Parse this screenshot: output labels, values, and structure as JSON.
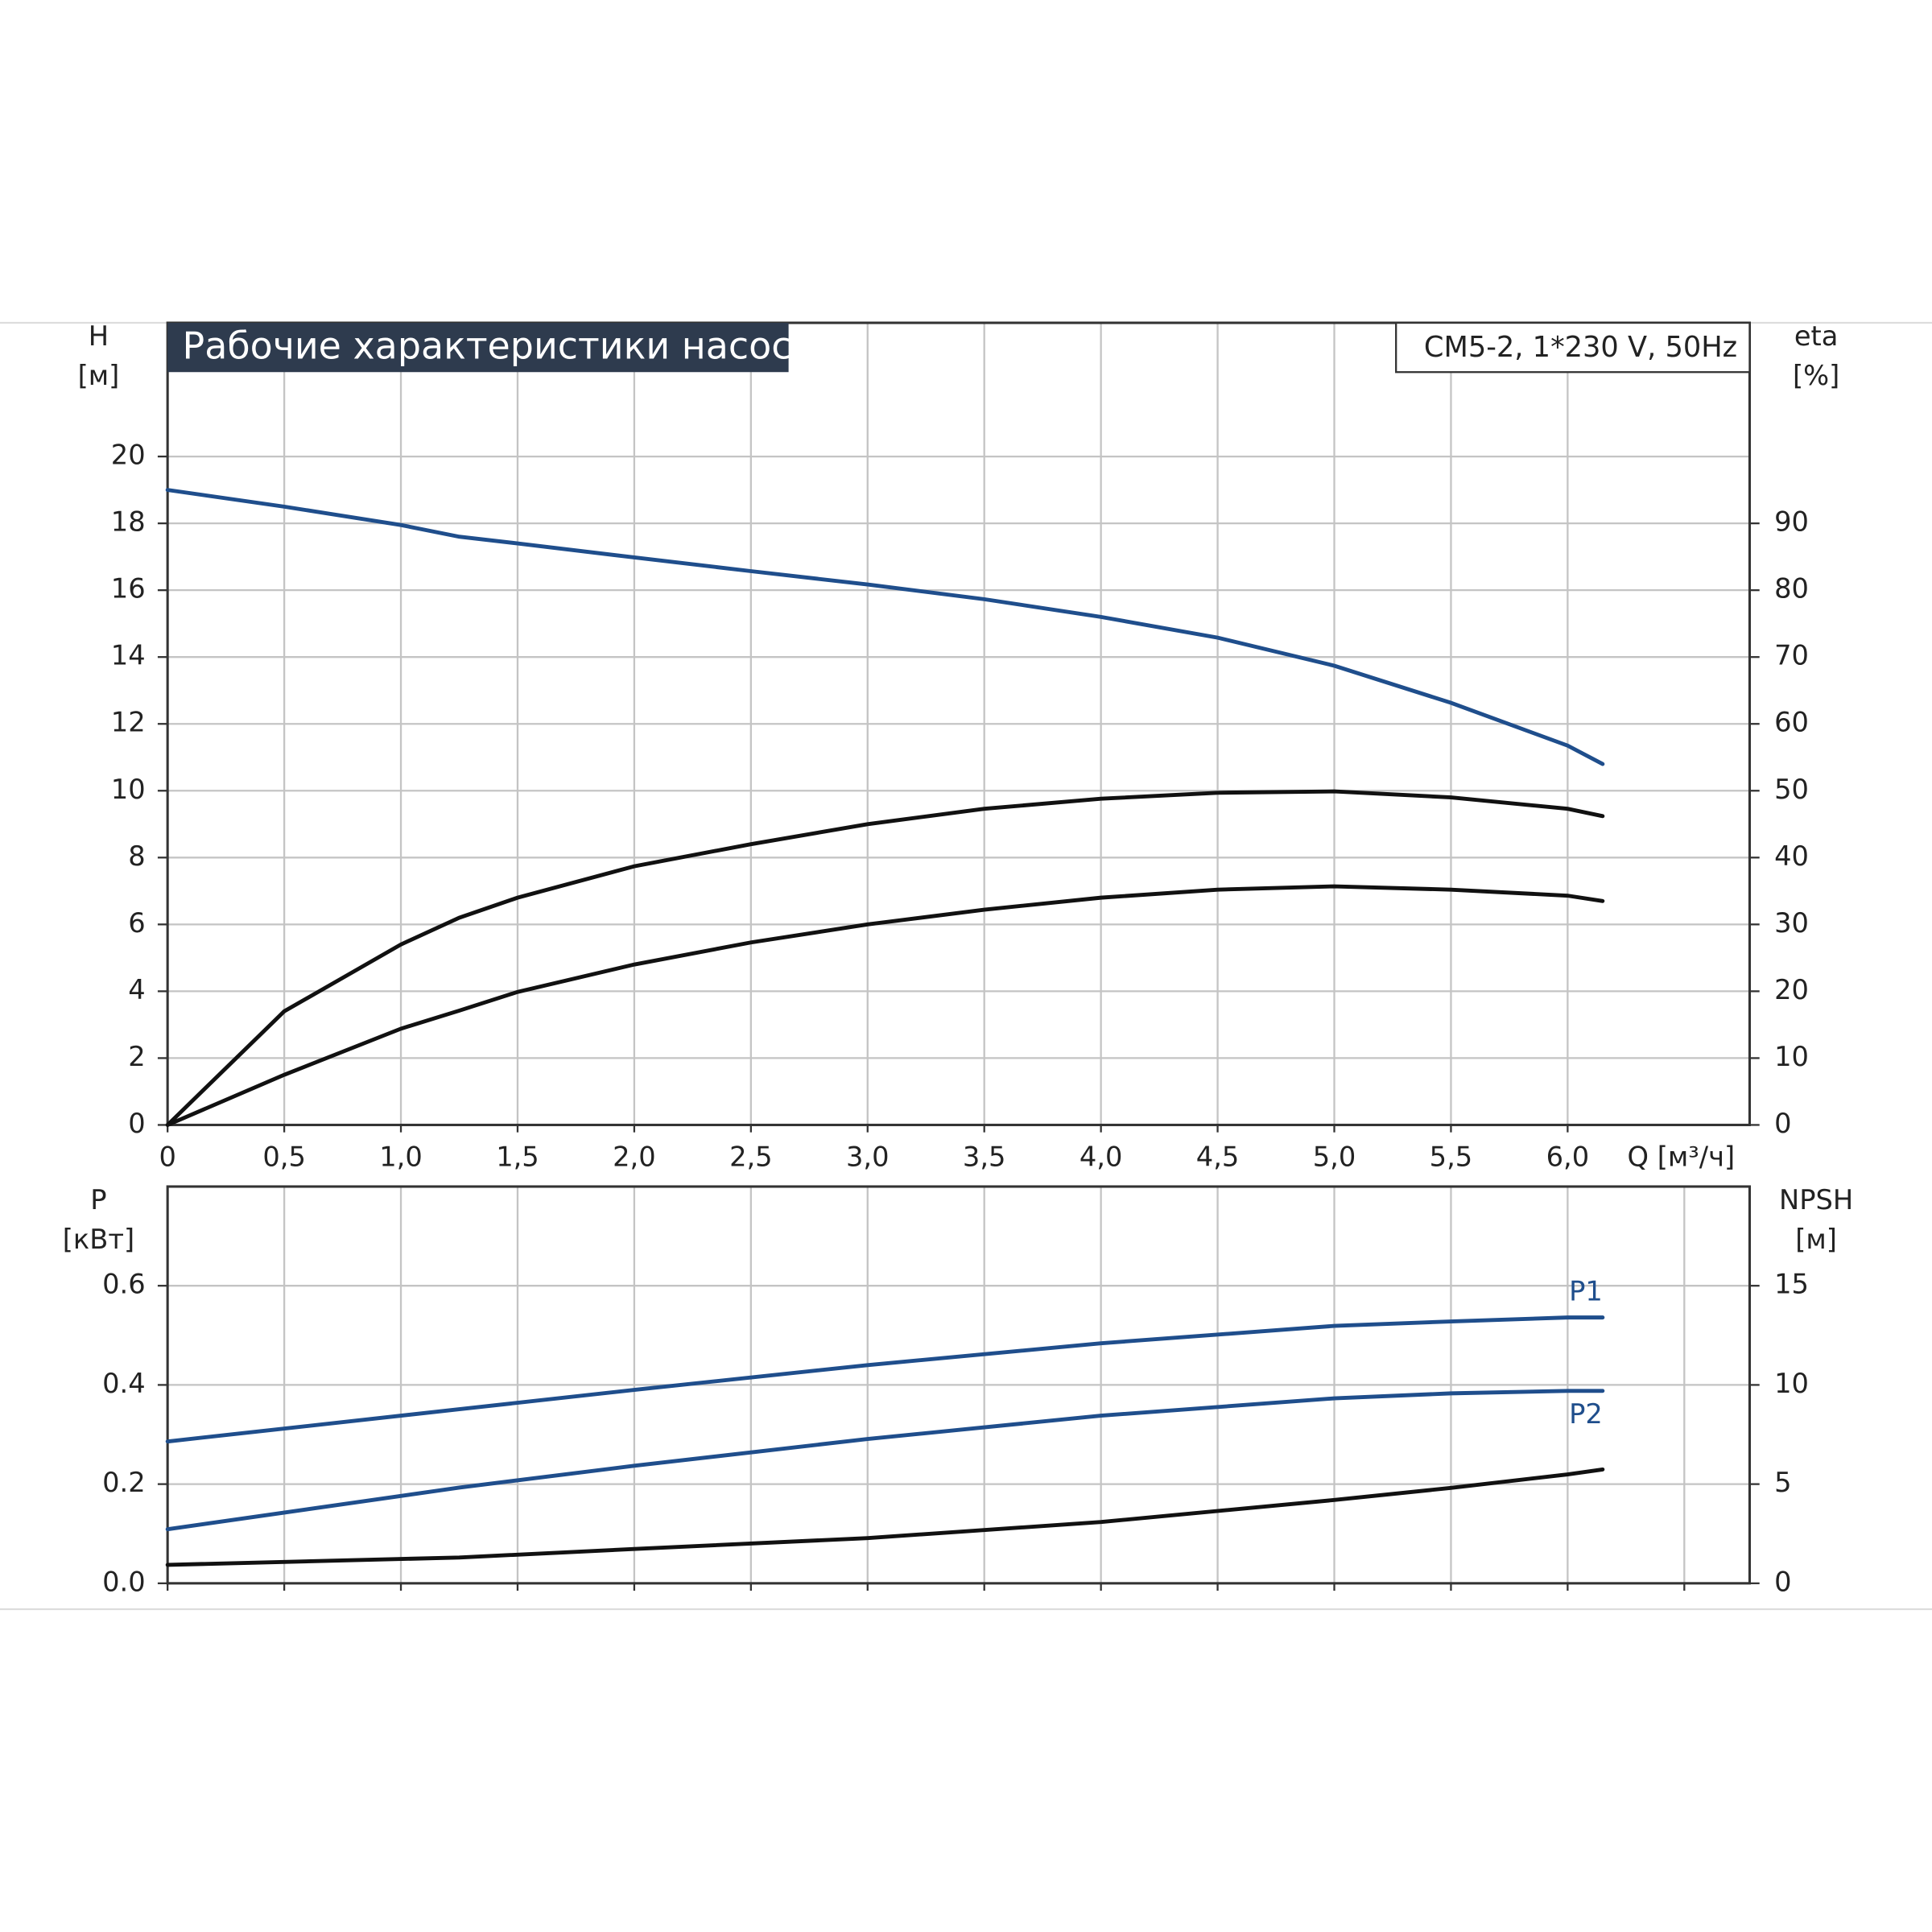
{
  "chart_data": [
    {
      "type": "line",
      "title": "Рабочие характеристики насоса",
      "annotation": "CM5-2, 1*230 V, 50Hz",
      "xlabel": "Q [м³/ч]",
      "ylabel": [
        "H",
        "[м]"
      ],
      "y2label": [
        "eta",
        "[%]"
      ],
      "x": [
        0,
        0.5,
        1.0,
        1.25,
        1.5,
        2.0,
        2.5,
        3.0,
        3.5,
        4.0,
        4.5,
        5.0,
        5.5,
        6.0,
        6.15
      ],
      "xlim": [
        0,
        6.78
      ],
      "xticks": [
        0,
        {
          "value": 0.5,
          "label": "0,5"
        },
        {
          "value": 1.0,
          "label": "1,0"
        },
        {
          "value": 1.5,
          "label": "1,5"
        },
        {
          "value": 2.0,
          "label": "2,0"
        },
        {
          "value": 2.5,
          "label": "2,5"
        },
        {
          "value": 3.0,
          "label": "3,0"
        },
        {
          "value": 3.5,
          "label": "3,5"
        },
        {
          "value": 4.0,
          "label": "4,0"
        },
        {
          "value": 4.5,
          "label": "4,5"
        },
        {
          "value": 5.0,
          "label": "5,0"
        },
        {
          "value": 5.5,
          "label": "5,5"
        },
        {
          "value": 6.0,
          "label": "6,0"
        }
      ],
      "ylim": [
        0,
        24
      ],
      "yticks": [
        0,
        2,
        4,
        6,
        8,
        10,
        12,
        14,
        16,
        18,
        20
      ],
      "y2lim": [
        0,
        120
      ],
      "y2ticks": [
        0,
        10,
        20,
        30,
        40,
        50,
        60,
        70,
        80,
        90
      ],
      "grid": true,
      "series": [
        {
          "color": "#1f4e8c",
          "values": [
            19.0,
            18.5,
            17.95,
            17.6,
            17.4,
            16.98,
            16.57,
            16.17,
            15.73,
            15.2,
            14.58,
            13.74,
            12.63,
            11.35,
            10.8
          ]
        },
        {
          "color": "#111111",
          "axis": "y2",
          "values": [
            0,
            17,
            27,
            31,
            34,
            38.7,
            42,
            45,
            47.3,
            48.8,
            49.7,
            49.9,
            49,
            47.3,
            46.2
          ]
        },
        {
          "color": "#111111",
          "axis": "y2",
          "values": [
            0,
            7.5,
            14.4,
            17.1,
            19.9,
            24,
            27.3,
            30,
            32.2,
            34,
            35.2,
            35.7,
            35.2,
            34.3,
            33.5
          ]
        }
      ]
    },
    {
      "type": "line",
      "ylabel": [
        "P",
        "[кВт]"
      ],
      "y2label": [
        "NPSH",
        "[м]"
      ],
      "x": [
        0,
        1.25,
        2.0,
        3.0,
        4.0,
        5.0,
        5.5,
        6.0,
        6.15
      ],
      "xlim": [
        0,
        6.78
      ],
      "xticks": [
        0,
        0.5,
        1.0,
        1.5,
        2.0,
        2.5,
        3.0,
        3.5,
        4.0,
        4.5,
        5.0,
        5.5,
        6.0,
        6.5
      ],
      "ylim": [
        0,
        0.8
      ],
      "yticks": [
        {
          "value": 0,
          "label": "0.0"
        },
        0.2,
        0.4,
        0.6
      ],
      "y2lim": [
        0,
        20
      ],
      "y2ticks": [
        0,
        5,
        10,
        15
      ],
      "grid": true,
      "series": [
        {
          "name": "P1",
          "color": "#1f4e8c",
          "values": [
            0.286,
            0.351,
            0.39,
            0.44,
            0.484,
            0.519,
            0.528,
            0.536,
            0.536
          ]
        },
        {
          "name": "P2",
          "color": "#1f4e8c",
          "values": [
            0.109,
            0.193,
            0.237,
            0.291,
            0.338,
            0.373,
            0.383,
            0.388,
            0.388
          ]
        },
        {
          "color": "#111111",
          "axis": "y2",
          "values": [
            0.93,
            1.3,
            1.73,
            2.28,
            3.09,
            4.2,
            4.81,
            5.49,
            5.74
          ]
        }
      ]
    }
  ]
}
